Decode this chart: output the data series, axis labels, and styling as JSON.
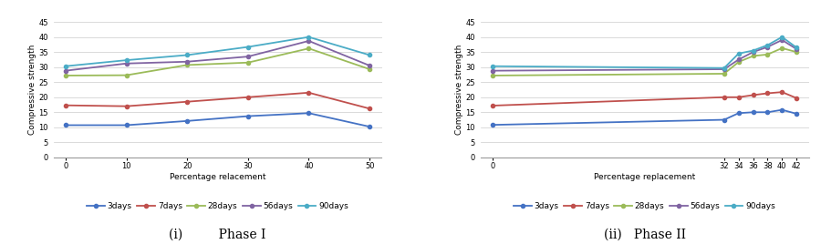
{
  "phase1": {
    "x": [
      0,
      10,
      20,
      30,
      40,
      50
    ],
    "xlabel": "Percentage relacement",
    "ylabel": "Compressive strength",
    "ylim": [
      0,
      45
    ],
    "yticks": [
      0,
      5,
      10,
      15,
      20,
      25,
      30,
      35,
      40,
      45
    ],
    "xticks": [
      0,
      10,
      20,
      30,
      40,
      50
    ],
    "series": {
      "3days": [
        10.7,
        10.7,
        12.1,
        13.7,
        14.7,
        10.2
      ],
      "7days": [
        17.3,
        17.0,
        18.5,
        20.0,
        21.5,
        16.2
      ],
      "28days": [
        27.2,
        27.3,
        30.7,
        31.5,
        36.2,
        29.3
      ],
      "56days": [
        28.8,
        31.2,
        31.8,
        33.5,
        38.7,
        30.5
      ],
      "90days": [
        30.3,
        32.3,
        34.0,
        36.7,
        40.0,
        34.0
      ]
    }
  },
  "phase2": {
    "x": [
      0,
      32,
      34,
      36,
      38,
      40,
      42
    ],
    "xlabel": "Percentage replacement",
    "ylabel": "Compressive strength",
    "ylim": [
      0,
      45
    ],
    "yticks": [
      0,
      5,
      10,
      15,
      20,
      25,
      30,
      35,
      40,
      45
    ],
    "xticks": [
      0,
      32,
      34,
      36,
      38,
      40,
      42
    ],
    "series": {
      "3days": [
        10.8,
        12.5,
        14.7,
        15.0,
        15.0,
        15.8,
        14.5
      ],
      "7days": [
        17.2,
        20.0,
        20.0,
        20.7,
        21.3,
        21.7,
        19.7
      ],
      "28days": [
        27.2,
        27.8,
        31.7,
        33.7,
        34.2,
        36.3,
        35.0
      ],
      "56days": [
        28.8,
        29.3,
        32.5,
        35.0,
        36.7,
        39.0,
        36.0
      ],
      "90days": [
        30.3,
        29.7,
        34.5,
        35.5,
        37.3,
        40.0,
        36.5
      ]
    }
  },
  "colors": {
    "3days": "#4472C4",
    "7days": "#C0504D",
    "28days": "#9BBB59",
    "56days": "#8064A2",
    "90days": "#4BACC6"
  },
  "series_order": [
    "3days",
    "7days",
    "28days",
    "56days",
    "90days"
  ],
  "marker": "o",
  "markersize": 3,
  "linewidth": 1.3,
  "legend_fontsize": 6.5,
  "axis_label_fontsize": 6.5,
  "tick_fontsize": 6,
  "caption1": "(i)         Phase I",
  "caption2": "(ii)   Phase II",
  "caption_fontsize": 10
}
